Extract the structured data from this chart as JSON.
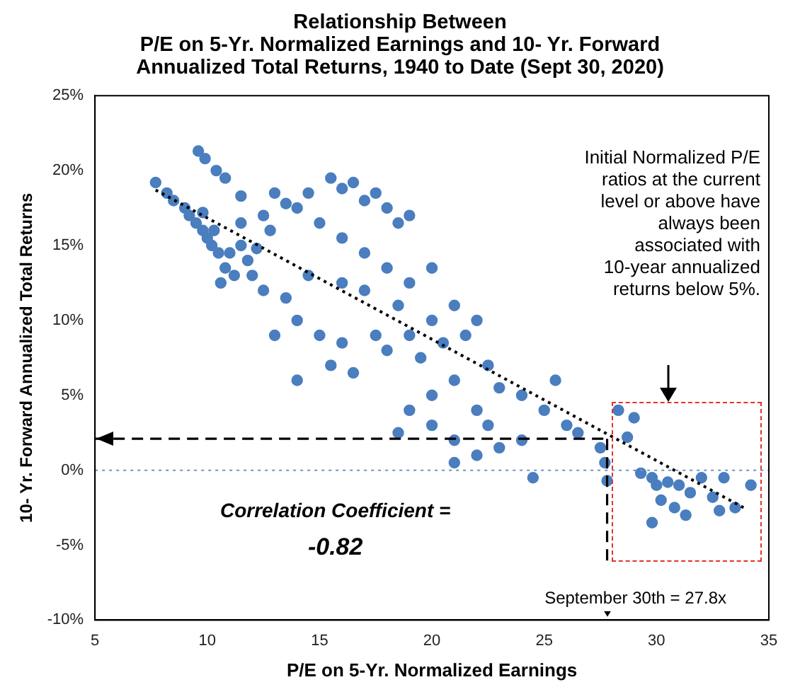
{
  "chart_data": {
    "type": "scatter",
    "title": "Relationship Between\nP/E on 5-Yr. Normalized Earnings and 10- Yr. Forward\nAnnualized Total Returns, 1940 to Date (Sept 30, 2020)",
    "xlabel": "P/E on 5-Yr. Normalized Earnings",
    "ylabel": "10- Yr. Forward Annualized Total Returns",
    "xlim": [
      5,
      35
    ],
    "xticks": [
      5,
      10,
      15,
      20,
      25,
      30,
      35
    ],
    "ylim": [
      -10,
      25
    ],
    "yticks": [
      {
        "value": -10,
        "label": "-10%"
      },
      {
        "value": -5,
        "label": "-5%"
      },
      {
        "value": 0,
        "label": "0%"
      },
      {
        "value": 5,
        "label": "5%"
      },
      {
        "value": 10,
        "label": "10%"
      },
      {
        "value": 15,
        "label": "15%"
      },
      {
        "value": 20,
        "label": "20%"
      },
      {
        "value": 25,
        "label": "25%"
      }
    ],
    "grid": false,
    "legend": false,
    "marker": "circle",
    "series": [
      {
        "color": "#4a7ebf",
        "x": [
          7.7,
          8.2,
          8.5,
          9,
          9.2,
          9.5,
          9.8,
          10,
          10.2,
          10.5,
          10.3,
          9.8,
          10.8,
          11,
          11.5,
          11.2,
          10.6,
          11.8,
          12,
          12.5,
          12.2,
          11.5,
          12.5,
          13,
          9.6,
          9.9,
          10.4,
          10.8,
          11.5,
          12.8,
          13.5,
          14,
          14.5,
          15.5,
          16,
          16.5,
          17,
          17.5,
          18,
          18.5,
          19,
          15,
          16,
          17,
          18,
          19,
          20,
          18.5,
          17,
          16,
          14.5,
          13.5,
          14,
          13,
          15,
          16,
          15.5,
          14,
          16.5,
          17.5,
          18,
          19,
          19.5,
          20,
          20.5,
          21,
          21.5,
          22,
          22.5,
          21,
          20,
          19,
          18.5,
          20,
          21,
          22,
          22.5,
          23,
          24,
          25,
          25.5,
          26,
          26.5,
          24,
          23,
          22,
          24.5,
          21,
          27.5,
          27.7,
          28.3,
          28.7,
          29,
          27.8,
          29.3,
          29.8,
          30,
          30.5,
          30.2,
          31,
          31.5,
          30.8,
          32,
          32.5,
          31.3,
          29.8,
          33,
          33.5,
          34.2,
          32.8
        ],
        "values": [
          19.2,
          18.5,
          18,
          17.5,
          17,
          16.5,
          16,
          15.5,
          15,
          14.5,
          16,
          17.2,
          13.5,
          14.5,
          15,
          13,
          12.5,
          14,
          13,
          12,
          14.8,
          16.5,
          17,
          18.5,
          21.3,
          20.8,
          20,
          19.5,
          18.3,
          16,
          17.8,
          17.5,
          18.5,
          19.5,
          18.8,
          19.2,
          18,
          18.5,
          17.5,
          16.5,
          17,
          16.5,
          15.5,
          14.5,
          13.5,
          12.5,
          13.5,
          11,
          12,
          12.5,
          13,
          11.5,
          10,
          9,
          9,
          8.5,
          7,
          6,
          6.5,
          9,
          8,
          9,
          7.5,
          10,
          8.5,
          11,
          9,
          10,
          7,
          6,
          5,
          4,
          2.5,
          3,
          2,
          4,
          3,
          5.5,
          5,
          4,
          6,
          3,
          2.5,
          2,
          1.5,
          1,
          -0.5,
          0.5,
          1.5,
          0.5,
          4,
          2.2,
          3.5,
          -0.7,
          -0.2,
          -0.5,
          -1,
          -0.8,
          -2,
          -1,
          -1.5,
          -2.5,
          -0.5,
          -1.8,
          -3,
          -3.5,
          -0.5,
          -2.5,
          -1,
          -2.7
        ]
      },
      {
        "type": "line",
        "color": "#000000",
        "line_style": "dotted",
        "marker": "none",
        "x": [
          7.7,
          34
        ],
        "values": [
          18.7,
          -2.6
        ]
      }
    ],
    "ref_lines": [
      {
        "axis": "y",
        "value": 0,
        "color": "#6f93c9",
        "line_style": "dotted"
      },
      {
        "axis": "y",
        "value": 2.1,
        "color": "#000000",
        "line_style": "dashed"
      },
      {
        "axis": "x",
        "value": 27.8,
        "label": "September 30th = 27.8x",
        "color": "#000000",
        "line_style": "dashed"
      }
    ],
    "annotations": [
      "Initial Normalized P/E ratios at the current level or above have always been associated with 10-year annualized returns below 5%.",
      "Correlation Coefficient =",
      "-0.82"
    ]
  }
}
